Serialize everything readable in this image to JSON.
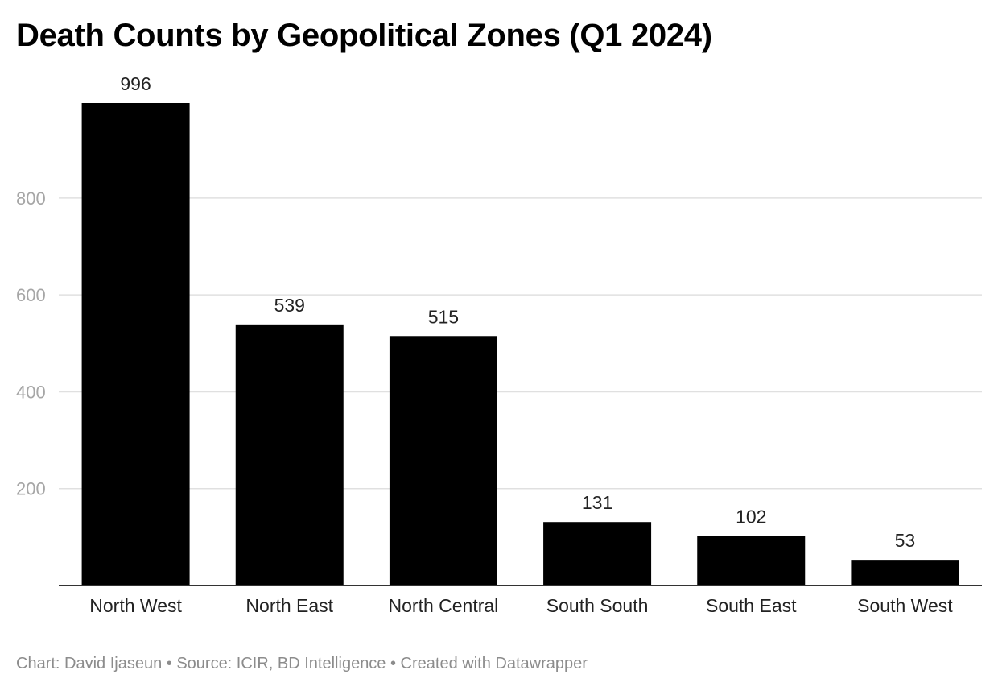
{
  "header": {
    "title": "Death Counts by Geopolitical Zones (Q1 2024)"
  },
  "footer": {
    "credit": "Chart: David Ijaseun • Source: ICIR, BD Intelligence • Created with Datawrapper"
  },
  "colors": {
    "bar": "#000000",
    "gridline": "#e0e0e0",
    "baseline": "#333333",
    "tick_text": "#a6a6a6"
  },
  "chart_data": {
    "type": "bar",
    "title": "Death Counts by Geopolitical Zones (Q1 2024)",
    "xlabel": "",
    "ylabel": "",
    "categories": [
      "North West",
      "North East",
      "North Central",
      "South South",
      "South East",
      "South West"
    ],
    "values": [
      996,
      539,
      515,
      131,
      102,
      53
    ],
    "value_labels": [
      "996",
      "539",
      "515",
      "131",
      "102",
      "53"
    ],
    "ylim": [
      0,
      996
    ],
    "yticks": [
      200,
      400,
      600,
      800
    ],
    "ytick_labels": [
      "200",
      "400",
      "600",
      "800"
    ],
    "grid": true,
    "legend": "none"
  }
}
